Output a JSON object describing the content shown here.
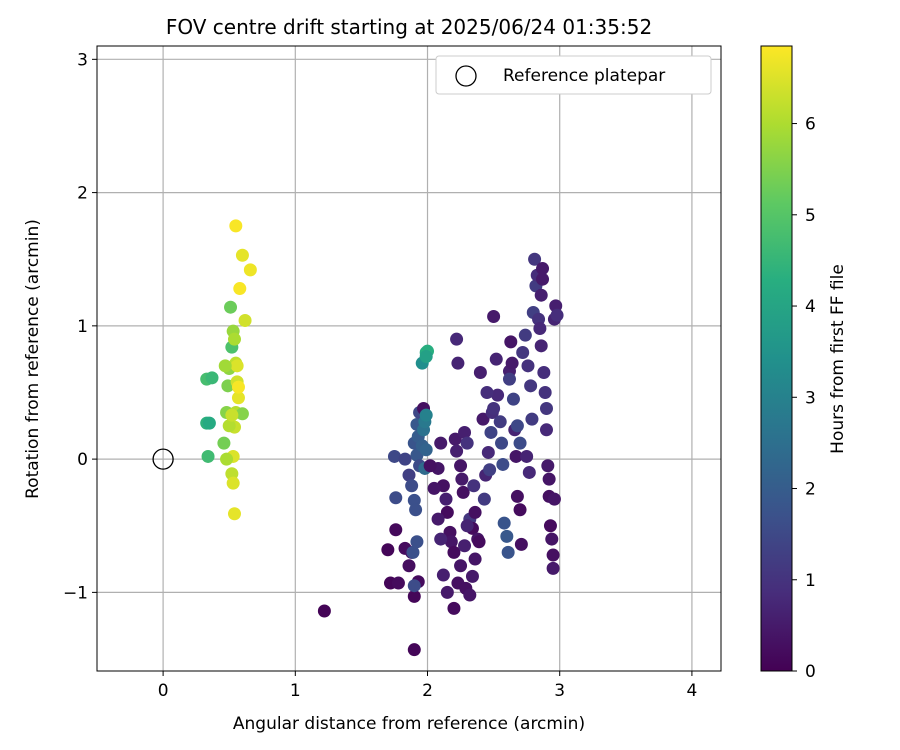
{
  "chart_data": {
    "type": "scatter",
    "title": "FOV centre drift starting at 2025/06/24 01:35:52",
    "xlabel": "Angular distance from reference (arcmin)",
    "ylabel": "Rotation from reference (arcmin)",
    "xlim": [
      -0.5,
      4.22
    ],
    "ylim": [
      -1.59,
      3.1
    ],
    "xticks": [
      0,
      1,
      2,
      3,
      4
    ],
    "xtick_labels": [
      "0",
      "1",
      "2",
      "3",
      "4"
    ],
    "yticks": [
      -1,
      0,
      1,
      2,
      3
    ],
    "ytick_labels": [
      "−1",
      "0",
      "1",
      "2",
      "3"
    ],
    "grid": true,
    "legend": {
      "placement": "top-right",
      "label": "Reference platepar"
    },
    "reference_point": {
      "x": 0,
      "y": 0
    },
    "colorbar": {
      "label": "Hours from first FF file",
      "colormap": "viridis",
      "range": [
        0,
        6.85
      ],
      "ticks": [
        0,
        1,
        2,
        3,
        4,
        5,
        6
      ],
      "tick_labels": [
        "0",
        "1",
        "2",
        "3",
        "4",
        "5",
        "6"
      ]
    },
    "series": [
      {
        "points": [
          [
            1.22,
            -1.14,
            0.05
          ],
          [
            1.9,
            -1.43,
            0.1
          ],
          [
            1.72,
            -0.93,
            0.1
          ],
          [
            1.78,
            -0.93,
            0.2
          ],
          [
            1.7,
            -0.68,
            0.1
          ],
          [
            1.76,
            -0.53,
            0.15
          ],
          [
            1.83,
            -0.67,
            0.2
          ],
          [
            1.86,
            -0.8,
            0.25
          ],
          [
            1.88,
            -0.7,
            0.3
          ],
          [
            1.9,
            -1.03,
            0.1
          ],
          [
            1.93,
            -0.92,
            0.2
          ],
          [
            1.9,
            -0.95,
            1.6
          ],
          [
            1.89,
            -0.7,
            1.7
          ],
          [
            1.92,
            -0.62,
            1.7
          ],
          [
            1.76,
            -0.29,
            1.6
          ],
          [
            1.75,
            0.02,
            1.5
          ],
          [
            1.83,
            0.0,
            1.4
          ],
          [
            1.86,
            -0.12,
            1.3
          ],
          [
            1.88,
            -0.2,
            1.6
          ],
          [
            1.9,
            -0.31,
            1.7
          ],
          [
            1.91,
            -0.38,
            1.7
          ],
          [
            1.92,
            0.03,
            1.9
          ],
          [
            1.94,
            -0.05,
            1.6
          ],
          [
            1.9,
            0.12,
            1.8
          ],
          [
            1.93,
            0.17,
            2.0
          ],
          [
            1.92,
            0.26,
            1.9
          ],
          [
            1.94,
            0.35,
            1.5
          ],
          [
            1.97,
            0.38,
            0.3
          ],
          [
            1.96,
            0.1,
            2.1
          ],
          [
            1.99,
            0.07,
            2.2
          ],
          [
            1.98,
            -0.07,
            2.4
          ],
          [
            1.97,
            0.22,
            2.6
          ],
          [
            1.98,
            0.28,
            2.8
          ],
          [
            1.99,
            0.33,
            3.0
          ],
          [
            1.96,
            0.72,
            3.4
          ],
          [
            1.99,
            0.8,
            4.2
          ],
          [
            2.0,
            0.81,
            4.3
          ],
          [
            1.99,
            0.77,
            3.9
          ],
          [
            2.08,
            -0.07,
            0.4
          ],
          [
            2.1,
            0.12,
            0.5
          ],
          [
            2.12,
            -0.2,
            0.3
          ],
          [
            2.14,
            -0.3,
            0.6
          ],
          [
            2.15,
            -0.4,
            0.2
          ],
          [
            2.17,
            -0.55,
            0.3
          ],
          [
            2.18,
            -0.62,
            0.4
          ],
          [
            2.2,
            -0.7,
            0.2
          ],
          [
            2.21,
            0.15,
            0.5
          ],
          [
            2.22,
            0.06,
            0.6
          ],
          [
            2.23,
            0.72,
            0.7
          ],
          [
            2.22,
            0.9,
            0.8
          ],
          [
            2.25,
            -0.05,
            0.4
          ],
          [
            2.26,
            -0.15,
            0.5
          ],
          [
            2.27,
            -0.25,
            0.3
          ],
          [
            2.28,
            0.2,
            0.6
          ],
          [
            2.3,
            0.12,
            1.0
          ],
          [
            2.32,
            -0.45,
            1.1
          ],
          [
            2.34,
            -0.52,
            0.2
          ],
          [
            2.36,
            -0.4,
            0.3
          ],
          [
            2.38,
            -0.6,
            0.4
          ],
          [
            2.39,
            -0.62,
            0.2
          ],
          [
            2.4,
            0.65,
            0.6
          ],
          [
            2.42,
            0.3,
            0.5
          ],
          [
            2.43,
            -0.3,
            1.2
          ],
          [
            2.44,
            -0.12,
            0.7
          ],
          [
            2.46,
            0.05,
            0.8
          ],
          [
            2.47,
            -0.08,
            1.3
          ],
          [
            2.48,
            0.2,
            1.4
          ],
          [
            2.49,
            0.35,
            0.9
          ],
          [
            2.5,
            1.07,
            0.5
          ],
          [
            2.52,
            0.75,
            0.7
          ],
          [
            2.53,
            0.48,
            0.8
          ],
          [
            2.55,
            0.28,
            1.2
          ],
          [
            2.56,
            0.12,
            1.5
          ],
          [
            2.57,
            -0.04,
            1.6
          ],
          [
            2.58,
            -0.48,
            1.8
          ],
          [
            2.6,
            -0.58,
            1.9
          ],
          [
            2.61,
            -0.7,
            1.8
          ],
          [
            2.62,
            0.66,
            0.6
          ],
          [
            2.63,
            0.88,
            0.4
          ],
          [
            2.64,
            0.72,
            0.5
          ],
          [
            2.66,
            0.22,
            0.7
          ],
          [
            2.67,
            0.02,
            0.4
          ],
          [
            2.68,
            -0.28,
            0.3
          ],
          [
            2.7,
            -0.38,
            0.2
          ],
          [
            2.71,
            -0.64,
            0.3
          ],
          [
            2.72,
            0.8,
            1.1
          ],
          [
            2.74,
            0.93,
            1.2
          ],
          [
            2.76,
            0.7,
            1.0
          ],
          [
            2.78,
            0.55,
            1.1
          ],
          [
            2.79,
            0.3,
            1.2
          ],
          [
            2.8,
            1.1,
            1.3
          ],
          [
            2.81,
            1.5,
            1.1
          ],
          [
            2.82,
            1.3,
            1.2
          ],
          [
            2.83,
            1.38,
            0.9
          ],
          [
            2.84,
            1.05,
            1.0
          ],
          [
            2.85,
            0.98,
            0.8
          ],
          [
            2.86,
            0.85,
            0.7
          ],
          [
            2.86,
            1.23,
            0.6
          ],
          [
            2.87,
            1.43,
            0.5
          ],
          [
            2.87,
            1.35,
            0.5
          ],
          [
            2.88,
            0.65,
            0.9
          ],
          [
            2.89,
            0.5,
            1.0
          ],
          [
            2.9,
            0.38,
            1.1
          ],
          [
            2.9,
            0.22,
            0.8
          ],
          [
            2.91,
            -0.05,
            0.5
          ],
          [
            2.92,
            -0.15,
            0.4
          ],
          [
            2.92,
            -0.28,
            0.3
          ],
          [
            2.93,
            -0.5,
            0.2
          ],
          [
            2.94,
            -0.6,
            0.4
          ],
          [
            2.95,
            -0.72,
            0.3
          ],
          [
            2.95,
            -0.82,
            0.5
          ],
          [
            2.96,
            1.05,
            0.7
          ],
          [
            2.97,
            1.15,
            0.6
          ],
          [
            2.98,
            1.08,
            0.9
          ],
          [
            2.96,
            -0.3,
            0.4
          ],
          [
            2.5,
            0.38,
            1.0
          ],
          [
            2.45,
            0.5,
            0.9
          ],
          [
            2.35,
            -0.2,
            1.0
          ],
          [
            2.3,
            -0.5,
            0.7
          ],
          [
            2.28,
            -0.65,
            0.6
          ],
          [
            2.25,
            -0.8,
            0.4
          ],
          [
            2.23,
            -0.93,
            0.3
          ],
          [
            2.2,
            -1.12,
            0.2
          ],
          [
            2.15,
            -1.0,
            0.5
          ],
          [
            2.12,
            -0.87,
            0.6
          ],
          [
            2.1,
            -0.6,
            0.7
          ],
          [
            2.08,
            -0.45,
            0.5
          ],
          [
            2.05,
            -0.22,
            0.4
          ],
          [
            2.02,
            -0.05,
            0.3
          ],
          [
            2.29,
            -0.97,
            0.3
          ],
          [
            2.32,
            -1.02,
            0.4
          ],
          [
            2.34,
            -0.88,
            0.5
          ],
          [
            2.36,
            -0.75,
            0.4
          ],
          [
            2.62,
            0.6,
            1.3
          ],
          [
            2.65,
            0.45,
            1.4
          ],
          [
            2.68,
            0.25,
            1.5
          ],
          [
            2.7,
            0.12,
            1.6
          ],
          [
            2.75,
            0.02,
            0.7
          ],
          [
            2.77,
            -0.1,
            0.8
          ]
        ]
      },
      {
        "points": [
          [
            0.33,
            0.6,
            4.8
          ],
          [
            0.37,
            0.61,
            4.6
          ],
          [
            0.33,
            0.27,
            4.4
          ],
          [
            0.35,
            0.27,
            4.2
          ],
          [
            0.34,
            0.02,
            4.7
          ],
          [
            0.46,
            0.12,
            5.4
          ],
          [
            0.48,
            0.35,
            5.6
          ],
          [
            0.49,
            0.55,
            5.5
          ],
          [
            0.5,
            0.68,
            5.7
          ],
          [
            0.51,
            1.14,
            5.3
          ],
          [
            0.52,
            0.84,
            4.9
          ],
          [
            0.53,
            0.96,
            5.8
          ],
          [
            0.54,
            0.9,
            6.0
          ],
          [
            0.55,
            0.72,
            6.2
          ],
          [
            0.56,
            0.58,
            6.4
          ],
          [
            0.57,
            0.46,
            6.6
          ],
          [
            0.55,
            0.35,
            6.1
          ],
          [
            0.54,
            0.24,
            6.3
          ],
          [
            0.53,
            0.02,
            6.5
          ],
          [
            0.52,
            -0.11,
            6.2
          ],
          [
            0.53,
            -0.18,
            6.5
          ],
          [
            0.54,
            -0.41,
            6.6
          ],
          [
            0.55,
            1.75,
            6.8
          ],
          [
            0.6,
            1.53,
            6.6
          ],
          [
            0.66,
            1.42,
            6.7
          ],
          [
            0.58,
            1.28,
            6.8
          ],
          [
            0.62,
            1.04,
            6.4
          ],
          [
            0.6,
            0.34,
            5.6
          ],
          [
            0.56,
            0.7,
            6.5
          ],
          [
            0.57,
            0.54,
            6.8
          ],
          [
            0.48,
            0.0,
            6.0
          ],
          [
            0.5,
            0.25,
            6.1
          ],
          [
            0.52,
            0.33,
            6.3
          ],
          [
            0.47,
            0.7,
            5.9
          ]
        ]
      }
    ]
  }
}
